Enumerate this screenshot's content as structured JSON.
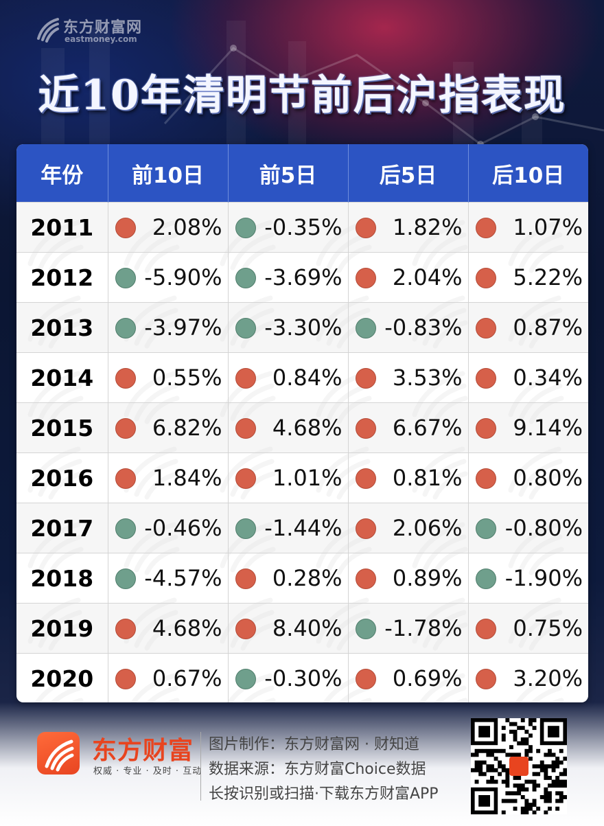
{
  "brand": {
    "name_cn": "东方财富网",
    "name_en": "eastmoney.com"
  },
  "title": "近10年清明节前后沪指表现",
  "table": {
    "headers": [
      "年份",
      "前10日",
      "前5日",
      "后5日",
      "后10日"
    ],
    "rows": [
      {
        "year": "2011",
        "cells": [
          "2.08%",
          "-0.35%",
          "1.82%",
          "1.07%"
        ]
      },
      {
        "year": "2012",
        "cells": [
          "-5.90%",
          "-3.69%",
          "2.04%",
          "5.22%"
        ]
      },
      {
        "year": "2013",
        "cells": [
          "-3.97%",
          "-3.30%",
          "-0.83%",
          "0.87%"
        ]
      },
      {
        "year": "2014",
        "cells": [
          "0.55%",
          "0.84%",
          "3.53%",
          "0.34%"
        ]
      },
      {
        "year": "2015",
        "cells": [
          "6.82%",
          "4.68%",
          "6.67%",
          "9.14%"
        ]
      },
      {
        "year": "2016",
        "cells": [
          "1.84%",
          "1.01%",
          "0.81%",
          "0.80%"
        ]
      },
      {
        "year": "2017",
        "cells": [
          "-0.46%",
          "-1.44%",
          "2.06%",
          "-0.80%"
        ]
      },
      {
        "year": "2018",
        "cells": [
          "-4.57%",
          "0.28%",
          "0.89%",
          "-1.90%"
        ]
      },
      {
        "year": "2019",
        "cells": [
          "4.68%",
          "8.40%",
          "-1.78%",
          "0.75%"
        ]
      },
      {
        "year": "2020",
        "cells": [
          "0.67%",
          "-0.30%",
          "0.69%",
          "3.20%"
        ]
      }
    ]
  },
  "colors": {
    "header_bg": "#2c54c3",
    "up_dot": "#d6604a",
    "down_dot": "#6f9f8c",
    "brand_orange": "#e8441f"
  },
  "footer": {
    "logo_cn": "东方财富",
    "logo_sub": "权威 · 专业 · 及时 · 互动",
    "line1": "图片制作：东方财富网 · 财知道",
    "line2": "数据来源：东方财富Choice数据",
    "line3": "长按识别或扫描·下载东方财富APP"
  }
}
